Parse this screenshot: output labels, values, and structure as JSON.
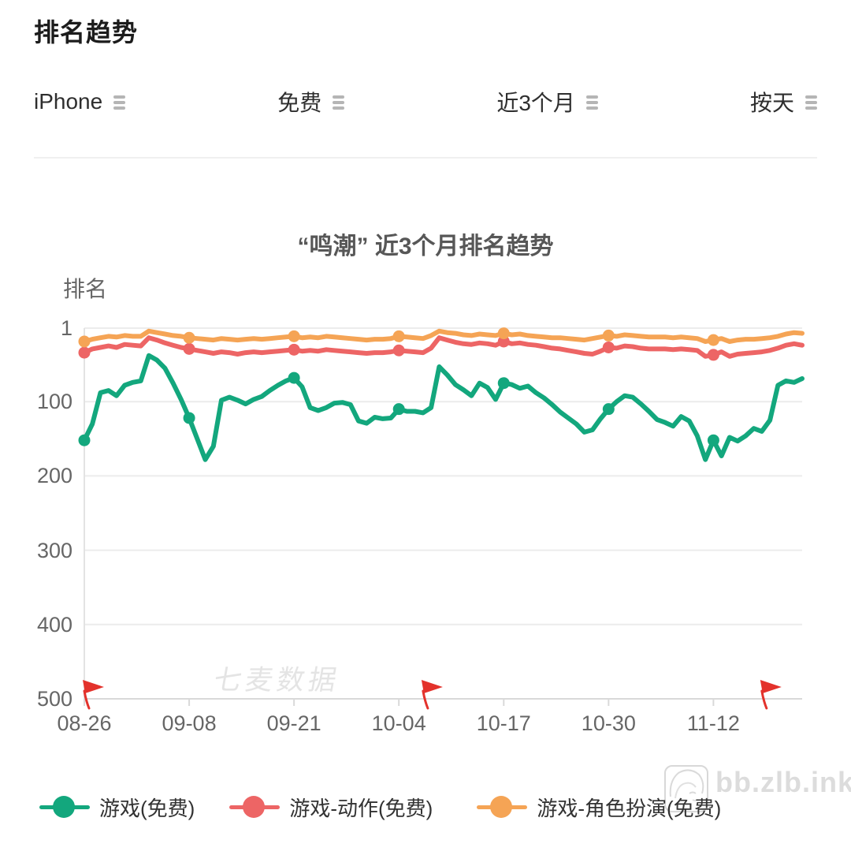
{
  "header": {
    "title": "排名趋势"
  },
  "filters": {
    "device": "iPhone",
    "price_type": "免费",
    "time_range": "近3个月",
    "granularity": "按天"
  },
  "chart_data": {
    "type": "line",
    "title": "“鸣潮” 近3个月排名趋势",
    "ylabel": "排名",
    "y_ticks": [
      1,
      100,
      200,
      300,
      400,
      500
    ],
    "ylim": [
      1,
      500
    ],
    "y_axis_inverted": true,
    "grid": true,
    "legend_position": "bottom",
    "watermark": "七麦数据",
    "x_tick_labels": [
      "08-26",
      "09-08",
      "09-21",
      "10-04",
      "10-17",
      "10-30",
      "11-12"
    ],
    "x_tick_days": [
      0,
      13,
      26,
      39,
      52,
      65,
      78
    ],
    "marker_days": [
      0,
      13,
      26,
      39,
      52,
      65,
      78
    ],
    "flag_days": [
      0,
      42,
      84
    ],
    "flag_color": "#e3322c",
    "series": [
      {
        "name": "游戏(免费)",
        "color": "#13a77d",
        "values": [
          152,
          130,
          88,
          85,
          92,
          78,
          74,
          72,
          38,
          44,
          55,
          75,
          97,
          122,
          150,
          178,
          160,
          98,
          94,
          98,
          103,
          97,
          93,
          85,
          78,
          72,
          68,
          80,
          108,
          112,
          108,
          102,
          101,
          104,
          126,
          129,
          121,
          123,
          122,
          110,
          113,
          113,
          115,
          108,
          53,
          64,
          77,
          84,
          92,
          75,
          81,
          97,
          75,
          77,
          82,
          79,
          88,
          95,
          104,
          114,
          122,
          130,
          141,
          138,
          123,
          110,
          100,
          92,
          94,
          103,
          113,
          124,
          128,
          133,
          120,
          126,
          146,
          178,
          152,
          173,
          148,
          153,
          146,
          136,
          140,
          125,
          78,
          72,
          74,
          69
        ]
      },
      {
        "name": "游戏-动作(免费)",
        "color": "#ed6565",
        "values": [
          34,
          29,
          27,
          25,
          27,
          23,
          24,
          25,
          14,
          17,
          21,
          24,
          27,
          29,
          31,
          33,
          35,
          33,
          34,
          36,
          34,
          33,
          34,
          33,
          32,
          31,
          30,
          32,
          31,
          32,
          30,
          31,
          32,
          33,
          34,
          35,
          34,
          34,
          33,
          31,
          32,
          33,
          34,
          28,
          14,
          17,
          20,
          22,
          23,
          21,
          22,
          24,
          19,
          22,
          21,
          23,
          24,
          26,
          28,
          29,
          31,
          33,
          35,
          36,
          32,
          27,
          28,
          25,
          26,
          28,
          29,
          29,
          29,
          30,
          29,
          30,
          31,
          39,
          37,
          33,
          39,
          36,
          35,
          34,
          33,
          31,
          28,
          24,
          22,
          24
        ]
      },
      {
        "name": "游戏-角色扮演(免费)",
        "color": "#f5a455",
        "values": [
          19,
          16,
          14,
          12,
          13,
          11,
          12,
          12,
          5,
          7,
          9,
          11,
          12,
          14,
          15,
          16,
          17,
          15,
          16,
          17,
          16,
          15,
          16,
          15,
          14,
          13,
          12,
          14,
          13,
          14,
          12,
          13,
          14,
          15,
          16,
          17,
          16,
          16,
          15,
          12,
          13,
          14,
          15,
          11,
          5,
          7,
          8,
          10,
          11,
          9,
          10,
          11,
          8,
          10,
          9,
          11,
          12,
          13,
          14,
          14,
          15,
          16,
          17,
          15,
          13,
          11,
          12,
          10,
          11,
          12,
          13,
          13,
          13,
          14,
          13,
          14,
          15,
          19,
          17,
          15,
          19,
          17,
          16,
          16,
          15,
          14,
          12,
          9,
          7,
          8
        ]
      }
    ]
  },
  "site_watermark": {
    "text": "bb.zlb.ink"
  }
}
